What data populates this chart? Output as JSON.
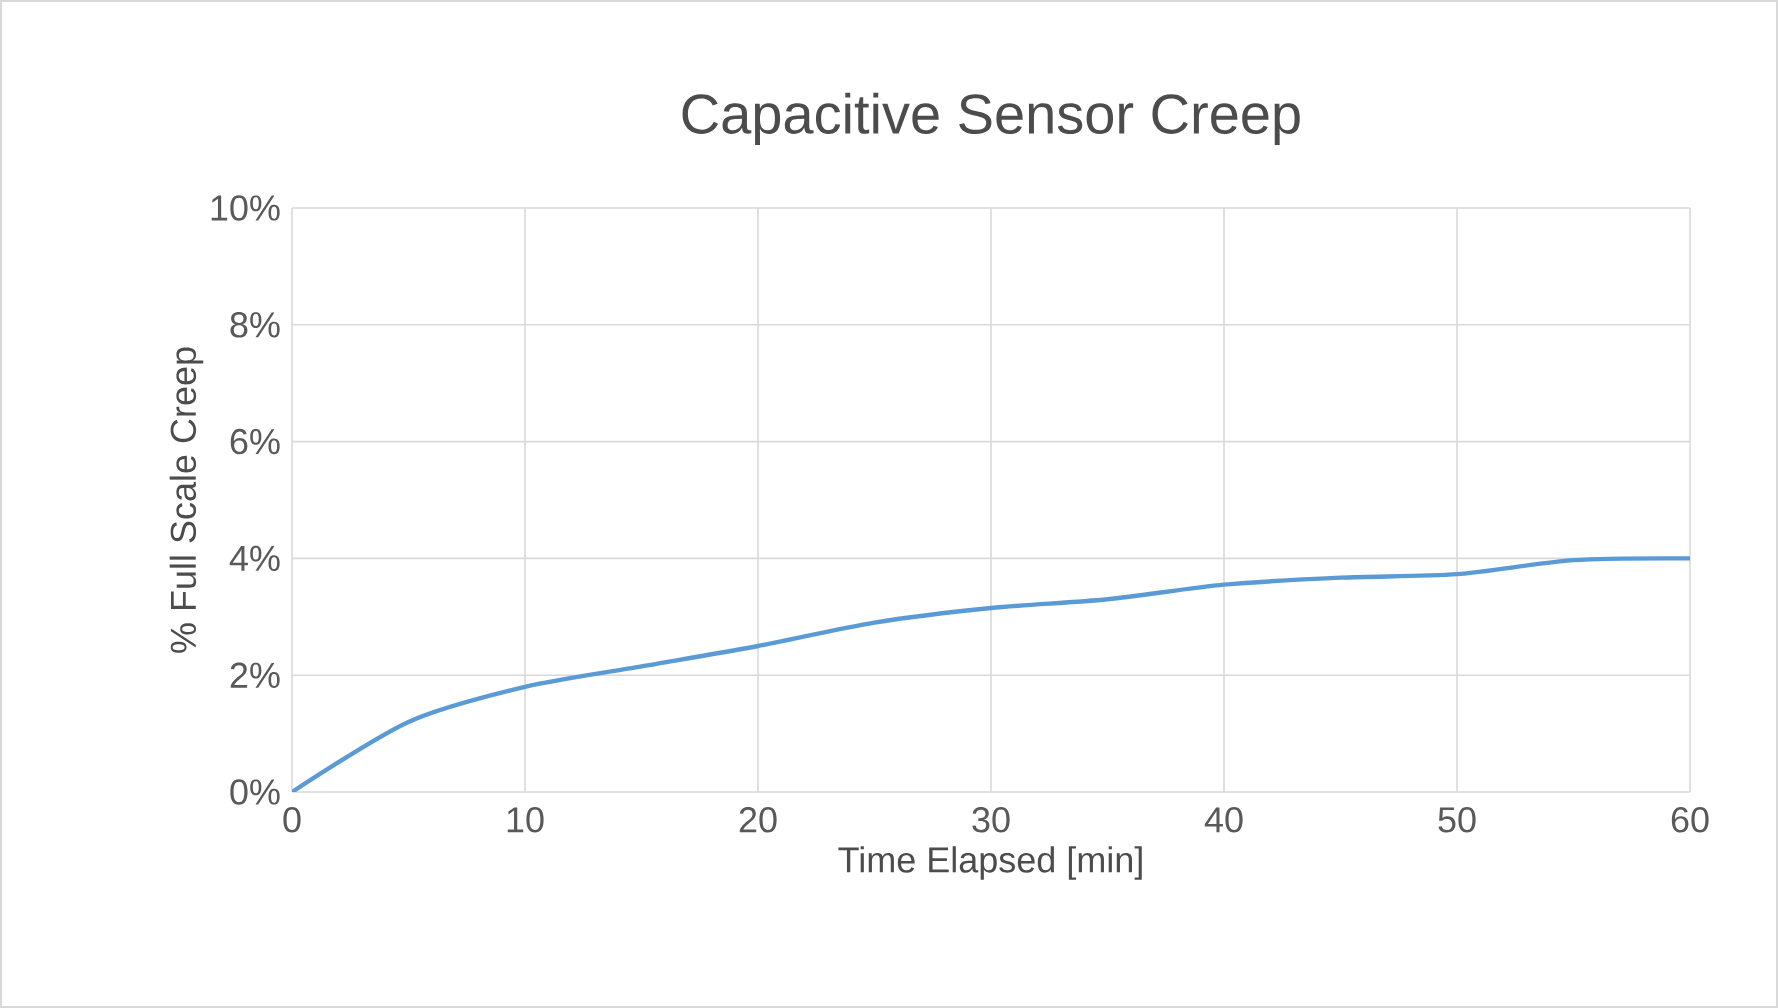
{
  "chart_data": {
    "type": "line",
    "title": "Capacitive Sensor Creep",
    "xlabel": "Time Elapsed [min]",
    "ylabel": "% Full Scale Creep",
    "x": [
      0,
      5,
      10,
      15,
      20,
      25,
      30,
      35,
      40,
      45,
      50,
      55,
      60
    ],
    "series": [
      {
        "color": "#5b9bd5",
        "values": [
          0,
          1.2,
          1.8,
          2.15,
          2.5,
          2.9,
          3.15,
          3.3,
          3.55,
          3.67,
          3.73,
          3.97,
          4.0
        ]
      }
    ],
    "xlim": [
      0,
      60
    ],
    "xticks": [
      0,
      10,
      20,
      30,
      40,
      50,
      60
    ],
    "ylim": [
      0,
      10
    ],
    "yticks": [
      {
        "value": 0,
        "label": "0%"
      },
      {
        "value": 2,
        "label": "2%"
      },
      {
        "value": 4,
        "label": "4%"
      },
      {
        "value": 6,
        "label": "6%"
      },
      {
        "value": 8,
        "label": "8%"
      },
      {
        "value": 10,
        "label": "10%"
      }
    ],
    "grid": true,
    "marker": "none",
    "line_style": "solid"
  }
}
